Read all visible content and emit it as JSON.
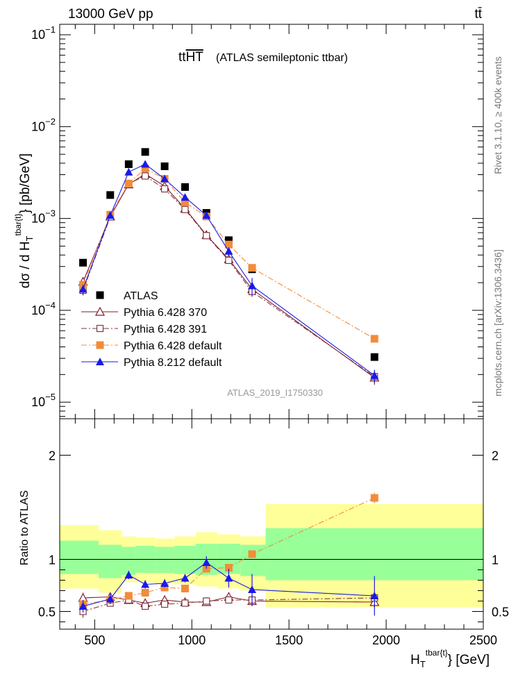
{
  "header": {
    "energy_label": "13000 GeV pp",
    "process_label": "tt̄"
  },
  "side_labels": {
    "rivet": "Rivet 3.1.10, ≥ 400k events",
    "source": "mcplots.cern.ch [arXiv:1306.3436]"
  },
  "chart_data": [
    {
      "type": "scatter",
      "title": "tt",
      "title_overline": "HT",
      "subtitle": "(ATLAS semileptonic ttbar)",
      "analysis_tag": "ATLAS_2019_I1750330",
      "ylabel": {
        "main": "dσ / d H",
        "sub": "T",
        "sup": "tbar{t}",
        "tail": "} [pb/GeV]"
      },
      "yscale": "log",
      "ylim": [
        6.6e-06,
        0.13
      ],
      "xlim": [
        320,
        2500
      ],
      "ytick_labels": [
        {
          "value": 0.1,
          "base": "10",
          "exp": "−1"
        },
        {
          "value": 0.01,
          "base": "10",
          "exp": "−2"
        },
        {
          "value": 0.001,
          "base": "10",
          "exp": "−3"
        },
        {
          "value": 0.0001,
          "base": "10",
          "exp": "−4"
        },
        {
          "value": 1e-05,
          "base": "10",
          "exp": "−5"
        }
      ],
      "legend_position": "bottom-left",
      "x": [
        440,
        580,
        675,
        760,
        860,
        965,
        1075,
        1190,
        1310,
        1940
      ],
      "series": [
        {
          "name": "ATLAS",
          "color": "#000000",
          "marker": "square-filled",
          "line": "none",
          "values": [
            0.00033,
            0.0018,
            0.0039,
            0.0053,
            0.0037,
            0.0022,
            0.00115,
            0.00058,
            0.00028,
            3.1e-05
          ],
          "errors": [
            0,
            0,
            0,
            0,
            0,
            0,
            0,
            0,
            0,
            0
          ]
        },
        {
          "name": "Pythia 6.428 370",
          "color": "#7f1a2a",
          "marker": "triangle-open",
          "line": "solid",
          "values": [
            0.000205,
            0.00105,
            0.00235,
            0.00305,
            0.00225,
            0.00128,
            0.00066,
            0.00036,
            0.00017,
            1.85e-05
          ],
          "errors": [
            2e-05,
            6e-05,
            8e-05,
            9e-05,
            7e-05,
            5e-05,
            4e-05,
            2e-05,
            2e-05,
            3e-06
          ]
        },
        {
          "name": "Pythia 6.428 391",
          "color": "#7f3a40",
          "marker": "square-open",
          "line": "dashdot",
          "values": [
            0.000165,
            0.00104,
            0.0024,
            0.0029,
            0.0021,
            0.00125,
            0.00065,
            0.00035,
            0.00016,
            1.9e-05
          ],
          "errors": [
            2e-05,
            6e-05,
            8e-05,
            9e-05,
            7e-05,
            5e-05,
            4e-05,
            2e-05,
            2e-05,
            3e-06
          ]
        },
        {
          "name": "Pythia 6.428 default",
          "color": "#f28c3a",
          "marker": "square-filled",
          "line": "dashdot",
          "values": [
            0.00019,
            0.0011,
            0.0024,
            0.0035,
            0.0027,
            0.0015,
            0.00105,
            0.00052,
            0.00029,
            4.9e-05
          ],
          "errors": [
            1e-05,
            4e-05,
            6e-05,
            7e-05,
            6e-05,
            4e-05,
            3e-05,
            2e-05,
            1e-05,
            2e-06
          ]
        },
        {
          "name": "Pythia 8.212 default",
          "color": "#1a1ae6",
          "marker": "triangle-filled",
          "line": "solid",
          "values": [
            0.00017,
            0.00108,
            0.0032,
            0.0039,
            0.0027,
            0.0017,
            0.00108,
            0.00044,
            0.000185,
            1.95e-05
          ],
          "errors": [
            2e-05,
            6e-05,
            0.0001,
            0.00012,
            8e-05,
            6e-05,
            5e-05,
            4e-05,
            4e-05,
            3e-06
          ]
        }
      ]
    },
    {
      "type": "scatter",
      "ylabel": "Ratio to ATLAS",
      "xlabel": {
        "main": "H",
        "sub": "T",
        "sup": "tbar{t}",
        "tail": "} [GeV]"
      },
      "xlim": [
        320,
        2500
      ],
      "ylim": [
        0.33,
        2.35
      ],
      "yticks": [
        0.5,
        1,
        2
      ],
      "ytick_labels": [
        "0.5",
        "1",
        "2"
      ],
      "xticks": [
        500,
        1000,
        1500,
        2000,
        2500
      ],
      "xtick_labels": [
        "500",
        "1000",
        "1500",
        "2000",
        "2500"
      ],
      "reference_line": 1,
      "bands": {
        "edges": [
          320,
          520,
          640,
          710,
          810,
          910,
          1020,
          1130,
          1250,
          1380,
          2500
        ],
        "inner_color": "#99ff99",
        "outer_color": "#ffff99",
        "inner": [
          [
            0.86,
            1.18
          ],
          [
            0.82,
            1.14
          ],
          [
            0.85,
            1.12
          ],
          [
            0.87,
            1.13
          ],
          [
            0.87,
            1.12
          ],
          [
            0.86,
            1.13
          ],
          [
            0.85,
            1.15
          ],
          [
            0.86,
            1.15
          ],
          [
            0.84,
            1.14
          ],
          [
            0.8,
            1.3
          ]
        ],
        "outer": [
          [
            0.72,
            1.33
          ],
          [
            0.68,
            1.28
          ],
          [
            0.78,
            1.22
          ],
          [
            0.78,
            1.21
          ],
          [
            0.77,
            1.2
          ],
          [
            0.76,
            1.22
          ],
          [
            0.74,
            1.26
          ],
          [
            0.72,
            1.24
          ],
          [
            0.7,
            1.22
          ],
          [
            0.54,
            1.53
          ]
        ]
      },
      "x": [
        440,
        580,
        675,
        760,
        860,
        965,
        1075,
        1190,
        1310,
        1940
      ],
      "series": [
        {
          "name": "Pythia 6.428 370",
          "color": "#7f1a2a",
          "marker": "triangle-open",
          "line": "solid",
          "values": [
            0.63,
            0.64,
            0.61,
            0.58,
            0.61,
            0.59,
            0.59,
            0.64,
            0.6,
            0.59
          ],
          "errors": [
            0.05,
            0.03,
            0.02,
            0.02,
            0.02,
            0.02,
            0.03,
            0.03,
            0.05,
            0.05
          ]
        },
        {
          "name": "Pythia 6.428 391",
          "color": "#7f3a40",
          "marker": "square-open",
          "line": "dashdot",
          "values": [
            0.5,
            0.58,
            0.61,
            0.55,
            0.57,
            0.58,
            0.6,
            0.61,
            0.61,
            0.63
          ],
          "errors": [
            0.06,
            0.03,
            0.02,
            0.02,
            0.02,
            0.02,
            0.03,
            0.03,
            0.05,
            0.05
          ]
        },
        {
          "name": "Pythia 6.428 default",
          "color": "#f28c3a",
          "marker": "square-filled",
          "line": "dashdot",
          "values": [
            0.57,
            0.61,
            0.65,
            0.68,
            0.73,
            0.72,
            0.91,
            0.92,
            1.05,
            1.59
          ],
          "errors": [
            0.02,
            0.02,
            0.02,
            0.02,
            0.02,
            0.02,
            0.02,
            0.03,
            0.03,
            0.05
          ]
        },
        {
          "name": "Pythia 8.212 default",
          "color": "#1a1ae6",
          "marker": "triangle-filled",
          "line": "solid",
          "values": [
            0.55,
            0.62,
            0.85,
            0.76,
            0.77,
            0.82,
            0.97,
            0.82,
            0.71,
            0.65
          ],
          "errors": [
            0.06,
            0.05,
            0.04,
            0.04,
            0.04,
            0.04,
            0.06,
            0.09,
            0.15,
            0.19
          ]
        }
      ]
    }
  ]
}
